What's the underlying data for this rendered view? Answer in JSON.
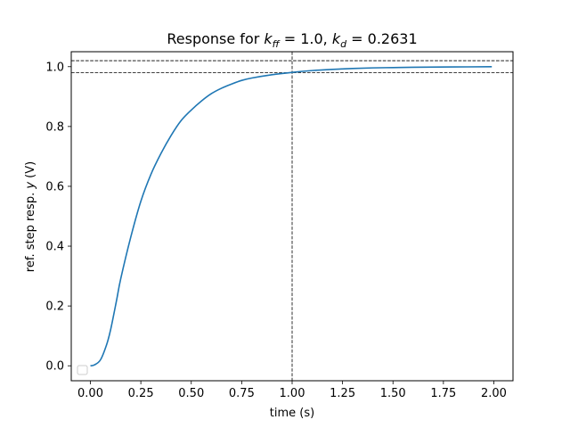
{
  "chart_data": {
    "type": "line",
    "title": {
      "prefix": "Response for ",
      "k_ff": "k",
      "k_ff_sub": "ff",
      "k_ff_value": " = 1.0, ",
      "k_d": "k",
      "k_d_sub": "d",
      "k_d_value": " = 0.2631"
    },
    "xlabel": "time (s)",
    "ylabel": {
      "text": "ref. step resp. ",
      "var": "y",
      "unit": " (V)"
    },
    "xlim": [
      -0.095,
      2.095
    ],
    "ylim": [
      -0.05,
      1.05
    ],
    "xticks": [
      0.0,
      0.25,
      0.5,
      0.75,
      1.0,
      1.25,
      1.5,
      1.75,
      2.0
    ],
    "xtick_labels": [
      "0.00",
      "0.25",
      "0.50",
      "0.75",
      "1.00",
      "1.25",
      "1.50",
      "1.75",
      "2.00"
    ],
    "yticks": [
      0.0,
      0.2,
      0.4,
      0.6,
      0.8,
      1.0
    ],
    "ytick_labels": [
      "0.0",
      "0.2",
      "0.4",
      "0.6",
      "0.8",
      "1.0"
    ],
    "grid": false,
    "legend": "lower-left (empty)",
    "series": [
      {
        "color": "#1f77b4",
        "x": [
          0.0,
          0.02,
          0.05,
          0.08,
          0.1,
          0.13,
          0.15,
          0.2,
          0.25,
          0.3,
          0.35,
          0.4,
          0.45,
          0.5,
          0.55,
          0.6,
          0.65,
          0.7,
          0.75,
          0.8,
          0.9,
          1.0,
          1.1,
          1.2,
          1.3,
          1.4,
          1.5,
          1.6,
          1.8,
          1.99
        ],
        "y": [
          0.0,
          0.003,
          0.02,
          0.07,
          0.12,
          0.22,
          0.29,
          0.43,
          0.55,
          0.64,
          0.71,
          0.77,
          0.82,
          0.855,
          0.885,
          0.91,
          0.928,
          0.942,
          0.954,
          0.962,
          0.973,
          0.981,
          0.987,
          0.991,
          0.994,
          0.996,
          0.997,
          0.998,
          0.999,
          1.0
        ]
      }
    ],
    "reference_lines": {
      "color": "#000000",
      "style": "dashed",
      "horizontal": [
        0.98,
        1.02
      ],
      "vertical": [
        1.0
      ]
    }
  }
}
